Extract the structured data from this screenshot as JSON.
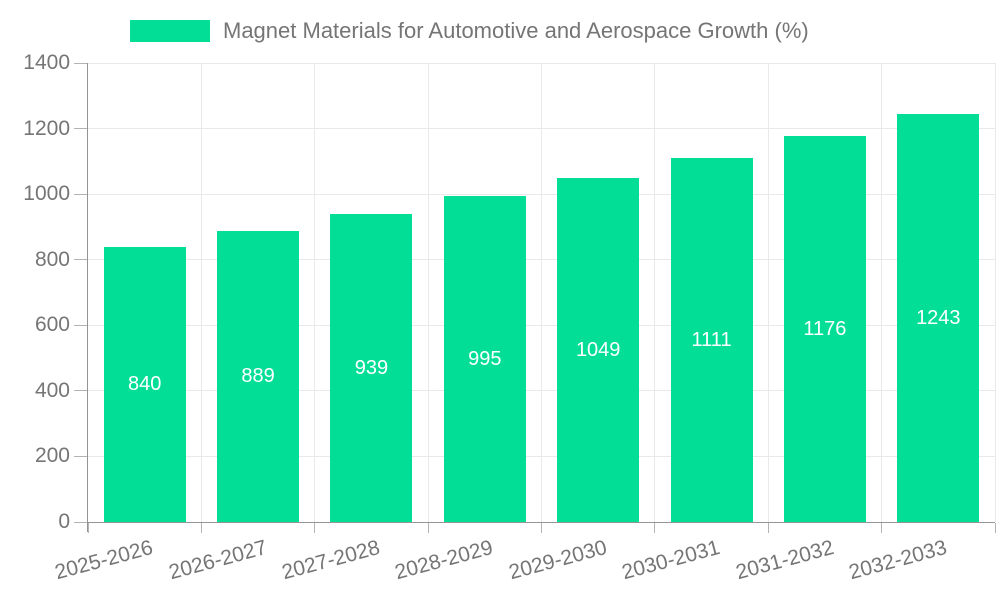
{
  "chart_data": {
    "type": "bar",
    "title": "Magnet Materials for Automotive and Aerospace Growth (%)",
    "legend": {
      "position": "top",
      "label": "Magnet Materials for Automotive and Aerospace Growth (%)"
    },
    "categories": [
      "2025-2026",
      "2026-2027",
      "2027-2028",
      "2028-2029",
      "2029-2030",
      "2030-2031",
      "2031-2032",
      "2032-2033"
    ],
    "series": [
      {
        "name": "Magnet Materials for Automotive and Aerospace Growth (%)",
        "values": [
          840,
          889,
          939,
          995,
          1049,
          1111,
          1176,
          1243
        ]
      }
    ],
    "value_labels_shown": true,
    "xlabel": "",
    "ylabel": "",
    "ylim": [
      0,
      1400
    ],
    "yticks": [
      0,
      200,
      400,
      600,
      800,
      1000,
      1200,
      1400
    ],
    "grid": true,
    "colors": {
      "bar": "#03DE96",
      "axis": "#949494",
      "grid": "#e9e9e9",
      "tick": "#b3b3b3",
      "text": "#757575",
      "value_label": "#ffffff",
      "background": "#ffffff"
    }
  }
}
